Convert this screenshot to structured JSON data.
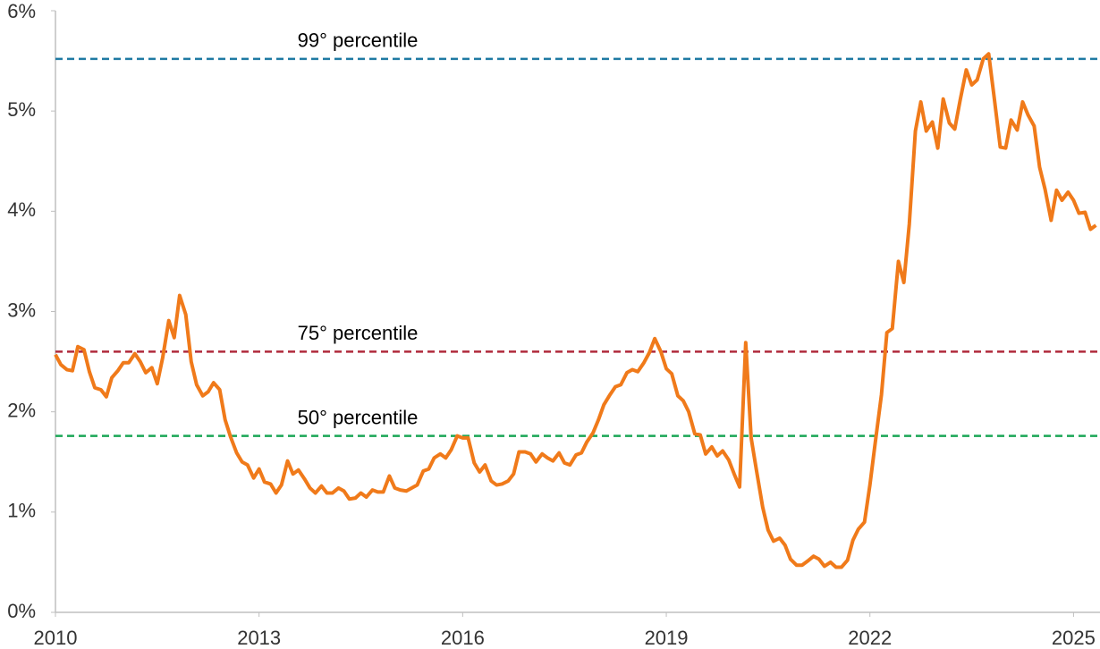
{
  "chart_data": {
    "type": "line",
    "x": [
      2010.0,
      2010.08,
      2010.17,
      2010.25,
      2010.33,
      2010.42,
      2010.5,
      2010.58,
      2010.67,
      2010.75,
      2010.83,
      2010.92,
      2011.0,
      2011.08,
      2011.17,
      2011.25,
      2011.33,
      2011.42,
      2011.5,
      2011.58,
      2011.67,
      2011.75,
      2011.83,
      2011.92,
      2012.0,
      2012.08,
      2012.17,
      2012.25,
      2012.33,
      2012.42,
      2012.5,
      2012.58,
      2012.67,
      2012.75,
      2012.83,
      2012.92,
      2013.0,
      2013.08,
      2013.17,
      2013.25,
      2013.33,
      2013.42,
      2013.5,
      2013.58,
      2013.67,
      2013.75,
      2013.83,
      2013.92,
      2014.0,
      2014.08,
      2014.17,
      2014.25,
      2014.33,
      2014.42,
      2014.5,
      2014.58,
      2014.67,
      2014.75,
      2014.83,
      2014.92,
      2015.0,
      2015.08,
      2015.17,
      2015.25,
      2015.33,
      2015.42,
      2015.5,
      2015.58,
      2015.67,
      2015.75,
      2015.83,
      2015.92,
      2016.0,
      2016.08,
      2016.17,
      2016.25,
      2016.33,
      2016.42,
      2016.5,
      2016.58,
      2016.67,
      2016.75,
      2016.83,
      2016.92,
      2017.0,
      2017.08,
      2017.17,
      2017.25,
      2017.33,
      2017.42,
      2017.5,
      2017.58,
      2017.67,
      2017.75,
      2017.83,
      2017.92,
      2018.0,
      2018.08,
      2018.17,
      2018.25,
      2018.33,
      2018.42,
      2018.5,
      2018.58,
      2018.67,
      2018.75,
      2018.83,
      2018.92,
      2019.0,
      2019.08,
      2019.17,
      2019.25,
      2019.33,
      2019.42,
      2019.5,
      2019.58,
      2019.67,
      2019.75,
      2019.83,
      2019.92,
      2020.0,
      2020.08,
      2020.17,
      2020.25,
      2020.33,
      2020.42,
      2020.5,
      2020.58,
      2020.67,
      2020.75,
      2020.83,
      2020.92,
      2021.0,
      2021.08,
      2021.17,
      2021.25,
      2021.33,
      2021.42,
      2021.5,
      2021.58,
      2021.67,
      2021.75,
      2021.83,
      2021.92,
      2022.0,
      2022.08,
      2022.17,
      2022.25,
      2022.33,
      2022.42,
      2022.5,
      2022.58,
      2022.67,
      2022.75,
      2022.83,
      2022.92,
      2023.0,
      2023.08,
      2023.17,
      2023.25,
      2023.33,
      2023.42,
      2023.5,
      2023.58,
      2023.67,
      2023.75,
      2023.83,
      2023.92,
      2024.0,
      2024.08,
      2024.17,
      2024.25,
      2024.33,
      2024.42,
      2024.5,
      2024.58,
      2024.67,
      2024.75,
      2024.83,
      2024.92,
      2025.0,
      2025.08,
      2025.17,
      2025.25,
      2025.33
    ],
    "series": [
      {
        "color": "#f07a1a",
        "values": [
          2.57,
          2.47,
          2.42,
          2.41,
          2.65,
          2.62,
          2.4,
          2.24,
          2.22,
          2.15,
          2.34,
          2.41,
          2.49,
          2.49,
          2.58,
          2.5,
          2.39,
          2.44,
          2.28,
          2.54,
          2.91,
          2.74,
          3.16,
          2.97,
          2.5,
          2.27,
          2.16,
          2.2,
          2.29,
          2.22,
          1.92,
          1.75,
          1.59,
          1.5,
          1.47,
          1.34,
          1.43,
          1.3,
          1.28,
          1.19,
          1.27,
          1.51,
          1.38,
          1.42,
          1.33,
          1.24,
          1.19,
          1.26,
          1.19,
          1.19,
          1.24,
          1.21,
          1.13,
          1.14,
          1.19,
          1.15,
          1.22,
          1.2,
          1.2,
          1.36,
          1.24,
          1.22,
          1.21,
          1.24,
          1.27,
          1.41,
          1.43,
          1.54,
          1.58,
          1.54,
          1.62,
          1.76,
          1.74,
          1.74,
          1.49,
          1.4,
          1.47,
          1.31,
          1.27,
          1.28,
          1.31,
          1.38,
          1.6,
          1.6,
          1.58,
          1.5,
          1.58,
          1.54,
          1.51,
          1.59,
          1.49,
          1.47,
          1.57,
          1.59,
          1.7,
          1.79,
          1.92,
          2.07,
          2.17,
          2.25,
          2.27,
          2.39,
          2.42,
          2.4,
          2.49,
          2.59,
          2.73,
          2.6,
          2.43,
          2.38,
          2.16,
          2.11,
          2.0,
          1.78,
          1.77,
          1.58,
          1.65,
          1.56,
          1.61,
          1.52,
          1.38,
          1.25,
          2.69,
          1.74,
          1.41,
          1.05,
          0.82,
          0.71,
          0.74,
          0.67,
          0.53,
          0.47,
          0.47,
          0.51,
          0.56,
          0.53,
          0.46,
          0.5,
          0.45,
          0.45,
          0.52,
          0.72,
          0.83,
          0.9,
          1.27,
          1.7,
          2.17,
          2.79,
          2.83,
          3.5,
          3.29,
          3.87,
          4.8,
          5.09,
          4.8,
          4.89,
          4.63,
          5.12,
          4.88,
          4.82,
          5.11,
          5.41,
          5.26,
          5.31,
          5.52,
          5.57,
          5.14,
          4.64,
          4.63,
          4.91,
          4.81,
          5.09,
          4.96,
          4.85,
          4.44,
          4.22,
          3.91,
          4.21,
          4.11,
          4.19,
          4.11,
          3.98,
          3.99,
          3.82,
          3.86
        ]
      }
    ],
    "reference_lines": [
      {
        "label": "99° percentile",
        "value": 5.52,
        "color": "#1f7aa3"
      },
      {
        "label": "75° percentile",
        "value": 2.6,
        "color": "#b02a3c"
      },
      {
        "label": "50° percentile",
        "value": 1.76,
        "color": "#1aa656"
      }
    ],
    "xlim": [
      2010,
      2025.39
    ],
    "xticks": [
      2010,
      2013,
      2016,
      2019,
      2022,
      2025
    ],
    "ylim": [
      0,
      6
    ],
    "yticks": [
      {
        "value": 0,
        "label": "0%"
      },
      {
        "value": 1,
        "label": "1%"
      },
      {
        "value": 2,
        "label": "2%"
      },
      {
        "value": 3,
        "label": "3%"
      },
      {
        "value": 4,
        "label": "4%"
      },
      {
        "value": 5,
        "label": "5%"
      },
      {
        "value": 6,
        "label": "6%"
      }
    ]
  }
}
